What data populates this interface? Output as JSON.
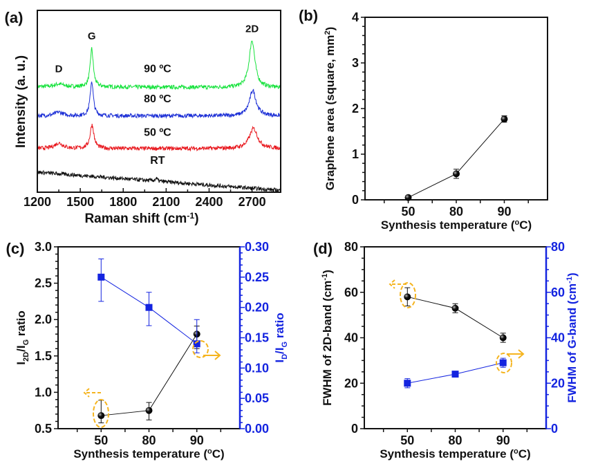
{
  "chart_data": [
    {
      "panel_label": "(a)",
      "type": "line",
      "xlabel": [
        {
          "t": "Raman shift (cm"
        },
        {
          "t": "-1",
          "sup": true
        },
        {
          "t": ")"
        }
      ],
      "ylabel": [
        {
          "t": "Intensity (a. u.)"
        }
      ],
      "xlim": [
        1200,
        2900
      ],
      "ylim": [
        0,
        10
      ],
      "xticks": [
        "1200",
        "1500",
        "1800",
        "2100",
        "2400",
        "2700"
      ],
      "peak_labels": [
        {
          "text": "D",
          "x": 1350,
          "y": 6.6
        },
        {
          "text": "G",
          "x": 1580,
          "y": 8.4
        },
        {
          "text": "2D",
          "x": 2700,
          "y": 8.8
        }
      ],
      "series": [
        {
          "name": "90 ºC",
          "color": "#16e23c",
          "baseline": [
            5.8,
            5.75
          ],
          "label_y": 6.6,
          "peaks": [
            {
              "center": 1350,
              "height": 0.15,
              "hwhm": 40
            },
            {
              "center": 1580,
              "height": 2.1,
              "hwhm": 13
            },
            {
              "center": 2700,
              "height": 2.6,
              "hwhm": 24
            }
          ]
        },
        {
          "name": "80 ºC",
          "color": "#1c2fd6",
          "baseline": [
            4.2,
            4.2
          ],
          "label_y": 4.95,
          "peaks": [
            {
              "center": 1350,
              "height": 0.2,
              "hwhm": 35
            },
            {
              "center": 1580,
              "height": 1.9,
              "hwhm": 13
            },
            {
              "center": 2705,
              "height": 1.4,
              "hwhm": 28
            }
          ]
        },
        {
          "name": "50 ºC",
          "color": "#e8161c",
          "baseline": [
            2.4,
            2.4
          ],
          "label_y": 3.1,
          "peaks": [
            {
              "center": 1350,
              "height": 0.3,
              "hwhm": 35
            },
            {
              "center": 1582,
              "height": 1.3,
              "hwhm": 16
            },
            {
              "center": 2710,
              "height": 1.1,
              "hwhm": 35
            }
          ]
        },
        {
          "name": "RT",
          "color": "#111111",
          "baseline": [
            1.1,
            0.1
          ],
          "label_y": 1.55,
          "peaks": [
            {
              "center": 2030,
              "height": 0.15,
              "hwhm": 10
            }
          ]
        }
      ]
    },
    {
      "panel_label": "(b)",
      "type": "line",
      "xlabel": [
        {
          "t": "Synthesis temperature ("
        },
        {
          "t": "o",
          "sup": true
        },
        {
          "t": "C)"
        }
      ],
      "ylabel": [
        {
          "t": "Graphene area (square, mm"
        },
        {
          "t": "2",
          "sup": true
        },
        {
          "t": ")"
        }
      ],
      "categories": [
        "50",
        "80",
        "90"
      ],
      "ylim": [
        0,
        4
      ],
      "yticks": [
        "0",
        "1",
        "2",
        "3",
        "4"
      ],
      "series": [
        {
          "name": "Graphene area",
          "color": "#111111",
          "marker": "circle",
          "axis": "left",
          "values": [
            0.05,
            0.57,
            1.77
          ],
          "errors": [
            0.03,
            0.1,
            0.07
          ]
        }
      ]
    },
    {
      "panel_label": "(c)",
      "type": "line",
      "xlabel": [
        {
          "t": "Synthesis temperature ("
        },
        {
          "t": "o",
          "sup": true
        },
        {
          "t": "C)"
        }
      ],
      "ylabel": [
        {
          "t": "I"
        },
        {
          "t": "2D",
          "sub": true
        },
        {
          "t": "/I"
        },
        {
          "t": "G",
          "sub": true
        },
        {
          "t": " ratio"
        }
      ],
      "ylabel_right": [
        {
          "t": "I"
        },
        {
          "t": "D",
          "sub": true
        },
        {
          "t": "/I"
        },
        {
          "t": "G",
          "sub": true
        },
        {
          "t": " ratio"
        }
      ],
      "categories": [
        "50",
        "80",
        "90"
      ],
      "ylim": [
        0.5,
        3.0
      ],
      "yticks": [
        "0.5",
        "1.0",
        "1.5",
        "2.0",
        "2.5",
        "3.0"
      ],
      "ylim_right": [
        0,
        0.3
      ],
      "yticks_right": [
        "0.00",
        "0.05",
        "0.10",
        "0.15",
        "0.20",
        "0.25",
        "0.30"
      ],
      "series": [
        {
          "name": "I2D/IG ratio",
          "color": "#111111",
          "marker": "circle",
          "axis": "left",
          "values": [
            0.68,
            0.75,
            1.8
          ],
          "err_low": [
            0.58,
            0.62,
            1.6
          ],
          "err_high": [
            0.89,
            0.86,
            1.91
          ]
        },
        {
          "name": "ID/IG ratio",
          "color": "#1424e0",
          "marker": "square",
          "axis": "right",
          "values": [
            0.25,
            0.2,
            0.14
          ],
          "err_low": [
            0.21,
            0.17,
            0.125
          ],
          "err_high": [
            0.28,
            0.225,
            0.18
          ]
        }
      ]
    },
    {
      "panel_label": "(d)",
      "type": "line",
      "xlabel": [
        {
          "t": "Synthesis temperature ("
        },
        {
          "t": "o",
          "sup": true
        },
        {
          "t": "C)"
        }
      ],
      "ylabel": [
        {
          "t": "FWHM of 2D-band (cm"
        },
        {
          "t": "-1",
          "sup": true
        },
        {
          "t": ")"
        }
      ],
      "ylabel_right": [
        {
          "t": "FWHM of G-band (cm"
        },
        {
          "t": "-1",
          "sup": true
        },
        {
          "t": ")"
        }
      ],
      "categories": [
        "50",
        "80",
        "90"
      ],
      "ylim": [
        0,
        80
      ],
      "yticks": [
        "0",
        "20",
        "40",
        "60",
        "80"
      ],
      "ylim_right": [
        0,
        80
      ],
      "yticks_right": [
        "0",
        "20",
        "40",
        "60",
        "80"
      ],
      "series": [
        {
          "name": "FWHM of 2D-band",
          "color": "#111111",
          "marker": "circle",
          "axis": "left",
          "values": [
            58,
            53,
            40
          ],
          "errors": [
            4,
            2,
            2
          ]
        },
        {
          "name": "FWHM of G-band",
          "color": "#1424e0",
          "marker": "square",
          "axis": "right",
          "values": [
            20,
            24,
            29
          ],
          "errors": [
            2,
            1,
            2
          ]
        }
      ]
    }
  ],
  "colors": {
    "annotation": "#f5b41e",
    "right_axis": "#1424e0"
  }
}
